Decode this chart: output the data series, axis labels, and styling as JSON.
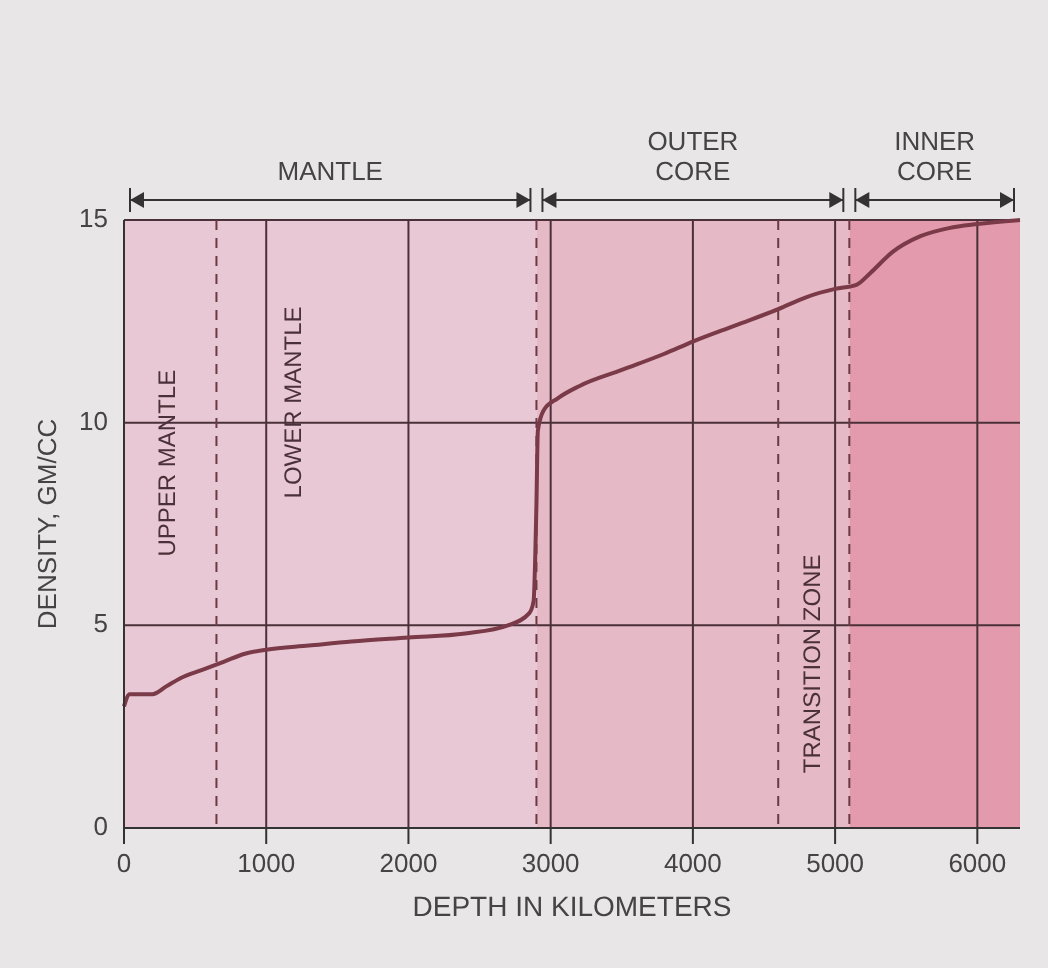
{
  "chart_data": {
    "type": "line",
    "xlabel": "DEPTH IN KILOMETERS",
    "ylabel": "DENSITY, GM/CC",
    "xlim": [
      0,
      6300
    ],
    "ylim": [
      0,
      15
    ],
    "xticks": [
      0,
      1000,
      2000,
      3000,
      4000,
      5000,
      6000
    ],
    "yticks": [
      0,
      5,
      10,
      15
    ],
    "grid": true,
    "series": [
      {
        "color": "#7a3a48",
        "x": [
          0,
          40,
          100,
          200,
          300,
          400,
          550,
          700,
          850,
          1000,
          1300,
          1600,
          2000,
          2400,
          2700,
          2850,
          2880,
          2900,
          2910,
          2950,
          3050,
          3200,
          3500,
          3800,
          4000,
          4300,
          4600,
          4800,
          5000,
          5150,
          5250,
          5400,
          5600,
          5800,
          6000,
          6300
        ],
        "values": [
          3.0,
          3.3,
          3.3,
          3.3,
          3.5,
          3.7,
          3.9,
          4.1,
          4.3,
          4.4,
          4.5,
          4.6,
          4.7,
          4.8,
          5.0,
          5.3,
          5.6,
          8.0,
          9.8,
          10.3,
          10.6,
          10.9,
          11.3,
          11.7,
          12.0,
          12.4,
          12.8,
          13.1,
          13.3,
          13.4,
          13.7,
          14.2,
          14.6,
          14.8,
          14.9,
          15.0
        ]
      }
    ],
    "ref_lines": [
      {
        "axis": "x",
        "value": 650,
        "line_style": "dashed"
      },
      {
        "axis": "x",
        "value": 2900,
        "line_style": "dashed"
      },
      {
        "axis": "x",
        "value": 4600,
        "line_style": "dashed"
      },
      {
        "axis": "x",
        "value": 5100,
        "line_style": "dashed"
      }
    ],
    "bands": [
      {
        "axis": "x",
        "from": 0,
        "to": 2900,
        "label": "MANTLE",
        "color": "#e8c8d4"
      },
      {
        "axis": "x",
        "from": 2900,
        "to": 5100,
        "label": "OUTER CORE",
        "color": "#e6b9c6"
      },
      {
        "axis": "x",
        "from": 5100,
        "to": 6300,
        "label": "INNER CORE",
        "color": "#e39aac"
      }
    ],
    "annotations": [
      "UPPER MANTLE",
      "LOWER MANTLE",
      "TRANSITION ZONE"
    ]
  }
}
